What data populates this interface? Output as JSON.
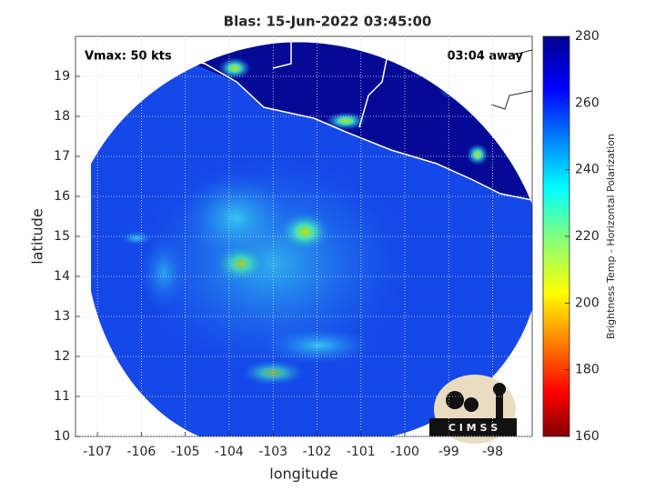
{
  "title": "Blas: 15-Jun-2022 03:45:00",
  "annotations": {
    "vmax": "Vmax: 50 kts",
    "away": "03:04 away"
  },
  "x_axis": {
    "label": "longitude",
    "lim": [
      -107.5,
      -97.1
    ],
    "ticks": [
      -107,
      -106,
      -105,
      -104,
      -103,
      -102,
      -101,
      -100,
      -99,
      -98
    ]
  },
  "y_axis": {
    "label": "latitude",
    "lim": [
      10,
      20
    ],
    "ticks": [
      10,
      11,
      12,
      13,
      14,
      15,
      16,
      17,
      18,
      19
    ]
  },
  "colorbar": {
    "label": "Brightness Temp - Horizontal Polarization",
    "lim": [
      160,
      280
    ],
    "ticks": [
      160,
      180,
      200,
      220,
      240,
      260,
      280
    ]
  },
  "logo": {
    "text": "C I M S S"
  }
}
